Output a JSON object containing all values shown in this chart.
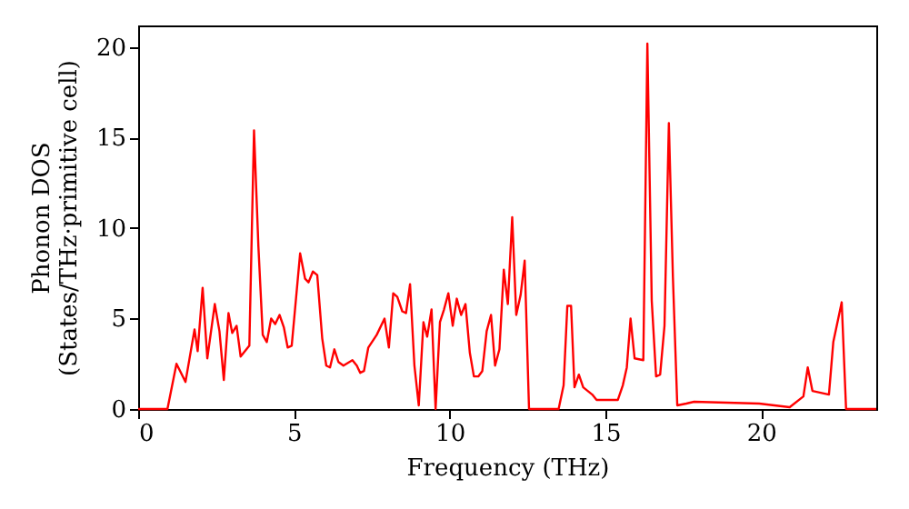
{
  "chart_data": {
    "type": "line",
    "xlabel": "Frequency (THz)",
    "ylabel": "Phonon DOS\n(States/THz·primitive cell)",
    "xlim": [
      0,
      23.7
    ],
    "ylim": [
      0,
      21.2
    ],
    "xticks": [
      0,
      5,
      10,
      15,
      20
    ],
    "yticks": [
      0,
      5,
      10,
      15,
      20
    ],
    "grid": false,
    "legend": false,
    "series": [
      {
        "color": "#ff0000",
        "x": [
          0,
          0.94,
          1.23,
          1.52,
          1.81,
          1.91,
          2.07,
          2.22,
          2.46,
          2.61,
          2.75,
          2.9,
          3.02,
          3.16,
          3.29,
          3.57,
          3.72,
          3.86,
          4.0,
          4.13,
          4.27,
          4.4,
          4.54,
          4.68,
          4.8,
          4.93,
          5.2,
          5.36,
          5.47,
          5.61,
          5.75,
          5.91,
          6.04,
          6.16,
          6.3,
          6.43,
          6.59,
          6.88,
          7.02,
          7.13,
          7.25,
          7.39,
          7.66,
          7.91,
          8.05,
          8.19,
          8.32,
          8.48,
          8.6,
          8.73,
          8.87,
          9.01,
          9.16,
          9.28,
          9.42,
          9.55,
          9.69,
          9.82,
          9.96,
          10.1,
          10.23,
          10.37,
          10.51,
          10.65,
          10.78,
          10.92,
          11.05,
          11.19,
          11.33,
          11.46,
          11.6,
          11.74,
          11.87,
          12.01,
          12.14,
          12.28,
          12.41,
          12.55,
          13.5,
          13.66,
          13.78,
          13.9,
          14.01,
          14.15,
          14.29,
          14.58,
          14.72,
          15.4,
          15.56,
          15.69,
          15.81,
          15.94,
          16.22,
          16.35,
          16.49,
          16.63,
          16.76,
          16.9,
          17.04,
          17.17,
          17.31,
          17.6,
          17.85,
          19.94,
          20.92,
          21.36,
          21.5,
          21.65,
          22.18,
          22.32,
          22.59,
          22.73,
          23.7
        ],
        "values": [
          0,
          0,
          2.5,
          1.5,
          4.4,
          3.2,
          6.7,
          2.8,
          5.8,
          4.3,
          1.6,
          5.3,
          4.2,
          4.6,
          2.9,
          3.5,
          15.4,
          9.0,
          4.1,
          3.7,
          5.0,
          4.7,
          5.2,
          4.5,
          3.4,
          3.5,
          8.6,
          7.2,
          7.0,
          7.6,
          7.4,
          3.9,
          2.4,
          2.3,
          3.3,
          2.6,
          2.4,
          2.7,
          2.4,
          2.0,
          2.1,
          3.4,
          4.1,
          5.0,
          3.4,
          6.4,
          6.2,
          5.4,
          5.3,
          6.9,
          2.4,
          0.2,
          4.8,
          4.0,
          5.5,
          0,
          4.8,
          5.5,
          6.4,
          4.6,
          6.1,
          5.2,
          5.8,
          3.1,
          1.8,
          1.8,
          2.1,
          4.3,
          5.2,
          2.4,
          3.3,
          7.7,
          5.8,
          10.6,
          5.2,
          6.3,
          8.2,
          0,
          0,
          1.3,
          5.7,
          5.7,
          1.2,
          1.9,
          1.2,
          0.8,
          0.5,
          0.5,
          1.3,
          2.3,
          5.0,
          2.8,
          2.7,
          20.2,
          6.0,
          1.8,
          1.9,
          4.6,
          15.8,
          7.3,
          0.2,
          0.3,
          0.4,
          0.3,
          0.1,
          0.7,
          2.3,
          1.0,
          0.8,
          3.7,
          5.9,
          0,
          0
        ]
      }
    ]
  }
}
